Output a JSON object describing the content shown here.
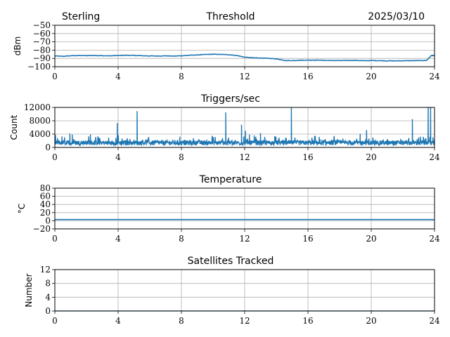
{
  "header": {
    "station": "Sterling",
    "date": "2025/03/10"
  },
  "colors": {
    "series": "#1f77b4",
    "grid": "#b0b0b0",
    "frame": "#000000"
  },
  "chart_data": [
    {
      "id": "threshold",
      "type": "line",
      "title": "Threshold",
      "ylabel": "dBm",
      "xlabel": "",
      "xlim": [
        0,
        24
      ],
      "ylim": [
        -100,
        -50
      ],
      "xticks": [
        0,
        4,
        8,
        12,
        16,
        20,
        24
      ],
      "yticks": [
        -100,
        -90,
        -80,
        -70,
        -60,
        -50
      ],
      "ytick_labels": [
        "−100",
        "−90",
        "−80",
        "−70",
        "−60",
        "−50"
      ],
      "grid": true,
      "series": [
        {
          "x": [
            0,
            0.5,
            1,
            1.5,
            2,
            2.5,
            3,
            3.5,
            4,
            4.5,
            5,
            5.5,
            6,
            6.5,
            7,
            7.5,
            8,
            8.5,
            9,
            9.5,
            10,
            10.5,
            11,
            11.5,
            12,
            12.5,
            13,
            13.5,
            14,
            14.5,
            15,
            15.5,
            16,
            16.5,
            17,
            17.5,
            18,
            18.5,
            19,
            19.5,
            20,
            20.5,
            21,
            21.5,
            22,
            22.5,
            23,
            23.5,
            23.8,
            24
          ],
          "y": [
            -87,
            -87.5,
            -86.8,
            -86.5,
            -86.6,
            -86.4,
            -86.8,
            -86.9,
            -86.5,
            -86.2,
            -86.4,
            -86.8,
            -87,
            -87.1,
            -86.9,
            -87.2,
            -86.8,
            -86.2,
            -85.8,
            -85.3,
            -85,
            -85.2,
            -85.5,
            -86.5,
            -88.5,
            -89.3,
            -89.5,
            -90,
            -90.5,
            -92.5,
            -92.6,
            -92.2,
            -92.1,
            -92,
            -92.3,
            -92.5,
            -92.6,
            -92.4,
            -92.3,
            -92.8,
            -92.5,
            -92.7,
            -92.9,
            -93,
            -92.8,
            -92.7,
            -92.6,
            -92.4,
            -86.5,
            -86.5
          ]
        }
      ]
    },
    {
      "id": "triggers",
      "type": "line",
      "title": "Triggers/sec",
      "ylabel": "Count",
      "xlabel": "",
      "xlim": [
        0,
        24
      ],
      "ylim": [
        0,
        12000
      ],
      "xticks": [
        0,
        4,
        8,
        12,
        16,
        20,
        24
      ],
      "yticks": [
        0,
        4000,
        8000,
        12000
      ],
      "ytick_labels": [
        "0",
        "4000",
        "8000",
        "12000"
      ],
      "grid": true,
      "baseline": 1400,
      "spikes": [
        {
          "x": 0.45,
          "y": 3300
        },
        {
          "x": 0.95,
          "y": 4200
        },
        {
          "x": 1.1,
          "y": 3800
        },
        {
          "x": 2.25,
          "y": 3900
        },
        {
          "x": 3.4,
          "y": 2900
        },
        {
          "x": 3.95,
          "y": 7300
        },
        {
          "x": 5.2,
          "y": 10900
        },
        {
          "x": 7.9,
          "y": 3200
        },
        {
          "x": 10.8,
          "y": 10500
        },
        {
          "x": 11.8,
          "y": 6800
        },
        {
          "x": 12.05,
          "y": 5000
        },
        {
          "x": 12.3,
          "y": 3800
        },
        {
          "x": 12.6,
          "y": 3600
        },
        {
          "x": 13.0,
          "y": 4300
        },
        {
          "x": 13.9,
          "y": 3400
        },
        {
          "x": 14.95,
          "y": 12300
        },
        {
          "x": 19.3,
          "y": 4100
        },
        {
          "x": 19.7,
          "y": 5200
        },
        {
          "x": 20.1,
          "y": 3000
        },
        {
          "x": 22.6,
          "y": 8500
        },
        {
          "x": 23.0,
          "y": 3000
        },
        {
          "x": 23.6,
          "y": 12300
        },
        {
          "x": 23.75,
          "y": 12300
        },
        {
          "x": 23.9,
          "y": 3000
        }
      ]
    },
    {
      "id": "temperature",
      "type": "line",
      "title": "Temperature",
      "ylabel": "°C",
      "xlabel": "",
      "xlim": [
        0,
        24
      ],
      "ylim": [
        -20,
        80
      ],
      "xticks": [
        0,
        4,
        8,
        12,
        16,
        20,
        24
      ],
      "yticks": [
        -20,
        0,
        20,
        40,
        60,
        80
      ],
      "ytick_labels": [
        "−20",
        "0",
        "20",
        "40",
        "60",
        "80"
      ],
      "grid": true,
      "series": [
        {
          "x": [
            0,
            24
          ],
          "y": [
            3,
            3
          ]
        }
      ]
    },
    {
      "id": "satellites",
      "type": "line",
      "title": "Satellites Tracked",
      "ylabel": "Number",
      "xlabel": "",
      "xlim": [
        0,
        24
      ],
      "ylim": [
        0,
        12
      ],
      "xticks": [
        0,
        4,
        8,
        12,
        16,
        20,
        24
      ],
      "yticks": [
        0,
        4,
        8,
        12
      ],
      "ytick_labels": [
        "0",
        "4",
        "8",
        "12"
      ],
      "grid": true,
      "series": [
        {
          "x": [
            0,
            24
          ],
          "y": [
            0,
            0
          ]
        }
      ]
    }
  ]
}
